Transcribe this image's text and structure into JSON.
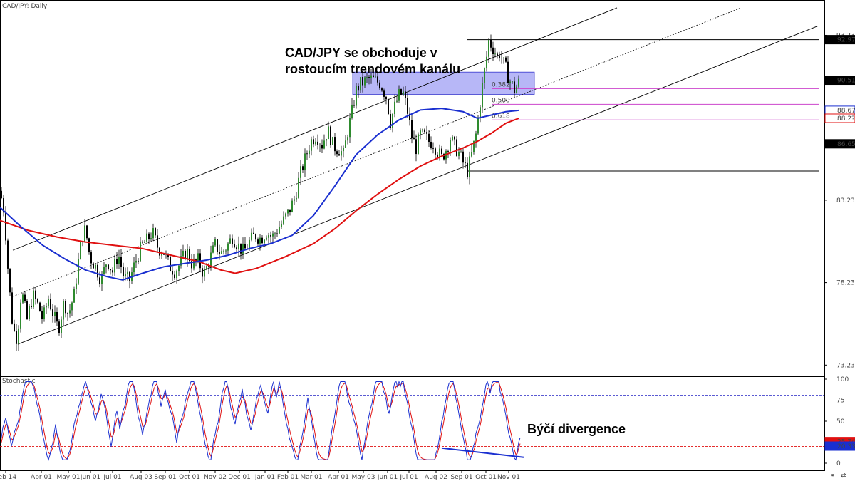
{
  "window_title": "CAD/JPY: Daily",
  "chart_data": [
    {
      "type": "candlestick",
      "title": "CAD/JPY: Daily",
      "symbol": "CAD/JPY",
      "timeframe": "Daily",
      "ylim": [
        72.6,
        95.2
      ],
      "price_ticks": [
        "93.235",
        "83.235",
        "78.235",
        "73.235"
      ],
      "price_labels": [
        {
          "value": 92.97,
          "text": "92.970",
          "style": "dark"
        },
        {
          "value": 90.51,
          "text": "90.510",
          "style": "dark"
        },
        {
          "value": 88.679,
          "text": "88.679",
          "style": "blue"
        },
        {
          "value": 88.2,
          "text": "88.2??",
          "style": "red"
        },
        {
          "value": 86.652,
          "text": "86.652",
          "style": "dark"
        }
      ],
      "x_ticks": [
        "Feb 14",
        "Apr 01",
        "May 01",
        "Jun 01",
        "Jul 01",
        "Aug 03",
        "Sep 01",
        "Oct 01",
        "Nov 02",
        "Dec 01",
        "Jan 01",
        "Feb 01",
        "Mar 01",
        "Apr 01",
        "May 03",
        "Jun 01",
        "Jul 01",
        "Aug 02",
        "Sep 01",
        "Oct 01",
        "Nov 01"
      ],
      "price_path": [
        [
          0,
          83.8
        ],
        [
          6,
          82.5
        ],
        [
          12,
          78.5
        ],
        [
          18,
          75.5
        ],
        [
          24,
          74.8
        ],
        [
          30,
          77.8
        ],
        [
          38,
          76.0
        ],
        [
          46,
          77.5
        ],
        [
          54,
          76.8
        ],
        [
          60,
          76.0
        ],
        [
          68,
          77.3
        ],
        [
          74,
          76.4
        ],
        [
          82,
          75.4
        ],
        [
          90,
          77.1
        ],
        [
          96,
          76.3
        ],
        [
          104,
          77.5
        ],
        [
          110,
          79.5
        ],
        [
          115,
          81.0
        ],
        [
          120,
          81.5
        ],
        [
          126,
          79.8
        ],
        [
          134,
          79.2
        ],
        [
          142,
          78.4
        ],
        [
          150,
          79.6
        ],
        [
          158,
          78.9
        ],
        [
          166,
          80.0
        ],
        [
          174,
          78.5
        ],
        [
          182,
          78.4
        ],
        [
          190,
          79.5
        ],
        [
          198,
          80.4
        ],
        [
          206,
          80.8
        ],
        [
          214,
          81.3
        ],
        [
          222,
          80.3
        ],
        [
          230,
          80.1
        ],
        [
          238,
          79.2
        ],
        [
          246,
          78.9
        ],
        [
          254,
          79.5
        ],
        [
          262,
          80.2
        ],
        [
          270,
          79.3
        ],
        [
          278,
          79.6
        ],
        [
          286,
          78.7
        ],
        [
          294,
          79.6
        ],
        [
          302,
          80.5
        ],
        [
          310,
          80.0
        ],
        [
          318,
          80.4
        ],
        [
          326,
          81.0
        ],
        [
          334,
          80.5
        ],
        [
          342,
          80.1
        ],
        [
          350,
          80.7
        ],
        [
          358,
          81.1
        ],
        [
          366,
          80.9
        ],
        [
          374,
          81.3
        ],
        [
          382,
          81.0
        ],
        [
          390,
          81.5
        ],
        [
          398,
          82.0
        ],
        [
          406,
          82.6
        ],
        [
          414,
          83.4
        ],
        [
          420,
          84.6
        ],
        [
          428,
          85.7
        ],
        [
          436,
          86.8
        ],
        [
          444,
          87.2
        ],
        [
          452,
          86.6
        ],
        [
          460,
          87.5
        ],
        [
          468,
          86.5
        ],
        [
          476,
          86.3
        ],
        [
          482,
          86.0
        ],
        [
          488,
          87.4
        ],
        [
          494,
          88.6
        ],
        [
          500,
          89.9
        ],
        [
          506,
          90.3
        ],
        [
          514,
          90.5
        ],
        [
          520,
          90.6
        ],
        [
          526,
          90.5
        ],
        [
          534,
          90.3
        ],
        [
          542,
          89.5
        ],
        [
          548,
          88.0
        ],
        [
          554,
          88.9
        ],
        [
          560,
          89.6
        ],
        [
          566,
          89.7
        ],
        [
          572,
          88.6
        ],
        [
          578,
          87.1
        ],
        [
          584,
          86.4
        ],
        [
          590,
          87.2
        ],
        [
          596,
          87.1
        ],
        [
          602,
          86.8
        ],
        [
          608,
          86.7
        ],
        [
          614,
          86.2
        ],
        [
          620,
          85.8
        ],
        [
          626,
          86.3
        ],
        [
          632,
          87.0
        ],
        [
          638,
          86.5
        ],
        [
          644,
          86.1
        ],
        [
          650,
          85.5
        ],
        [
          656,
          85.0
        ],
        [
          662,
          86.0
        ],
        [
          668,
          87.2
        ],
        [
          674,
          89.2
        ],
        [
          678,
          90.5
        ],
        [
          682,
          91.6
        ],
        [
          686,
          92.9
        ],
        [
          690,
          92.6
        ],
        [
          694,
          92.3
        ],
        [
          698,
          91.9
        ],
        [
          702,
          92.2
        ],
        [
          706,
          91.6
        ],
        [
          710,
          91.2
        ],
        [
          714,
          90.6
        ],
        [
          718,
          90.3
        ],
        [
          722,
          89.9
        ],
        [
          726,
          90.2
        ],
        [
          730,
          90.5
        ]
      ],
      "ma_blue_path": [
        [
          0,
          82.8
        ],
        [
          30,
          81.6
        ],
        [
          60,
          80.5
        ],
        [
          90,
          79.7
        ],
        [
          120,
          79.0
        ],
        [
          150,
          78.6
        ],
        [
          172,
          78.4
        ],
        [
          200,
          78.8
        ],
        [
          230,
          79.2
        ],
        [
          260,
          79.4
        ],
        [
          290,
          79.6
        ],
        [
          320,
          79.9
        ],
        [
          350,
          80.3
        ],
        [
          380,
          80.6
        ],
        [
          410,
          81.1
        ],
        [
          440,
          82.3
        ],
        [
          470,
          84.1
        ],
        [
          500,
          86.0
        ],
        [
          530,
          87.2
        ],
        [
          560,
          88.1
        ],
        [
          590,
          88.7
        ],
        [
          620,
          88.8
        ],
        [
          650,
          88.6
        ],
        [
          670,
          88.2
        ],
        [
          690,
          88.4
        ],
        [
          710,
          88.6
        ],
        [
          728,
          88.68
        ]
      ],
      "ma_red_path": [
        [
          0,
          82.0
        ],
        [
          40,
          81.4
        ],
        [
          80,
          81.0
        ],
        [
          120,
          80.7
        ],
        [
          160,
          80.5
        ],
        [
          200,
          80.3
        ],
        [
          240,
          79.9
        ],
        [
          280,
          79.5
        ],
        [
          310,
          79.0
        ],
        [
          330,
          78.8
        ],
        [
          360,
          79.1
        ],
        [
          400,
          79.8
        ],
        [
          440,
          80.6
        ],
        [
          470,
          81.5
        ],
        [
          500,
          82.6
        ],
        [
          530,
          83.6
        ],
        [
          560,
          84.5
        ],
        [
          590,
          85.3
        ],
        [
          620,
          85.9
        ],
        [
          650,
          86.4
        ],
        [
          670,
          86.8
        ],
        [
          690,
          87.3
        ],
        [
          710,
          87.9
        ],
        [
          728,
          88.2
        ]
      ],
      "channel": {
        "upper": [
          [
            18,
            80.2
          ],
          [
            866,
            94.9
          ]
        ],
        "lower": [
          [
            25,
            74.5
          ],
          [
            1148,
            93.8
          ]
        ],
        "mid": [
          [
            18,
            77.4
          ],
          [
            1040,
            94.9
          ]
        ]
      },
      "horizontal_lines": [
        {
          "price": 92.97,
          "from": 655,
          "to": 1150,
          "color": "#000000"
        },
        {
          "price": 85.0,
          "from": 655,
          "to": 1150,
          "color": "#000000"
        },
        {
          "price": 90.0,
          "from": 690,
          "to": 1150,
          "color": "#cc44cc"
        },
        {
          "price": 89.05,
          "from": 690,
          "to": 1150,
          "color": "#cc44cc"
        },
        {
          "price": 88.1,
          "from": 690,
          "to": 1150,
          "color": "#cc44cc"
        }
      ],
      "fib_labels": [
        {
          "text": "0.382",
          "price": 90.0
        },
        {
          "text": "0.500",
          "price": 89.05
        },
        {
          "text": "0.618",
          "price": 88.1
        }
      ],
      "resistance_zone": {
        "x_from": 495,
        "x_to": 750,
        "price_from": 91.0,
        "price_to": 89.65,
        "color": "#7b7bf0"
      },
      "annotation": {
        "line1": "CAD/JPY se obchoduje v",
        "line2": "rostoucím trendovém kanálu"
      }
    },
    {
      "type": "line",
      "title": "Stochastic",
      "ylim": [
        0,
        100
      ],
      "y_ticks": [
        "100",
        "75",
        "50",
        "25",
        "0"
      ],
      "levels": [
        80,
        20
      ],
      "value_labels": [
        {
          "value": 25.74,
          "text": "25.74",
          "style": "red"
        },
        {
          "value": 20.33,
          "text": "20.33",
          "style": "blue"
        }
      ],
      "divergence_line": [
        [
          620,
          18
        ],
        [
          735,
          7
        ]
      ],
      "annotation": "Býčí divergence"
    }
  ]
}
